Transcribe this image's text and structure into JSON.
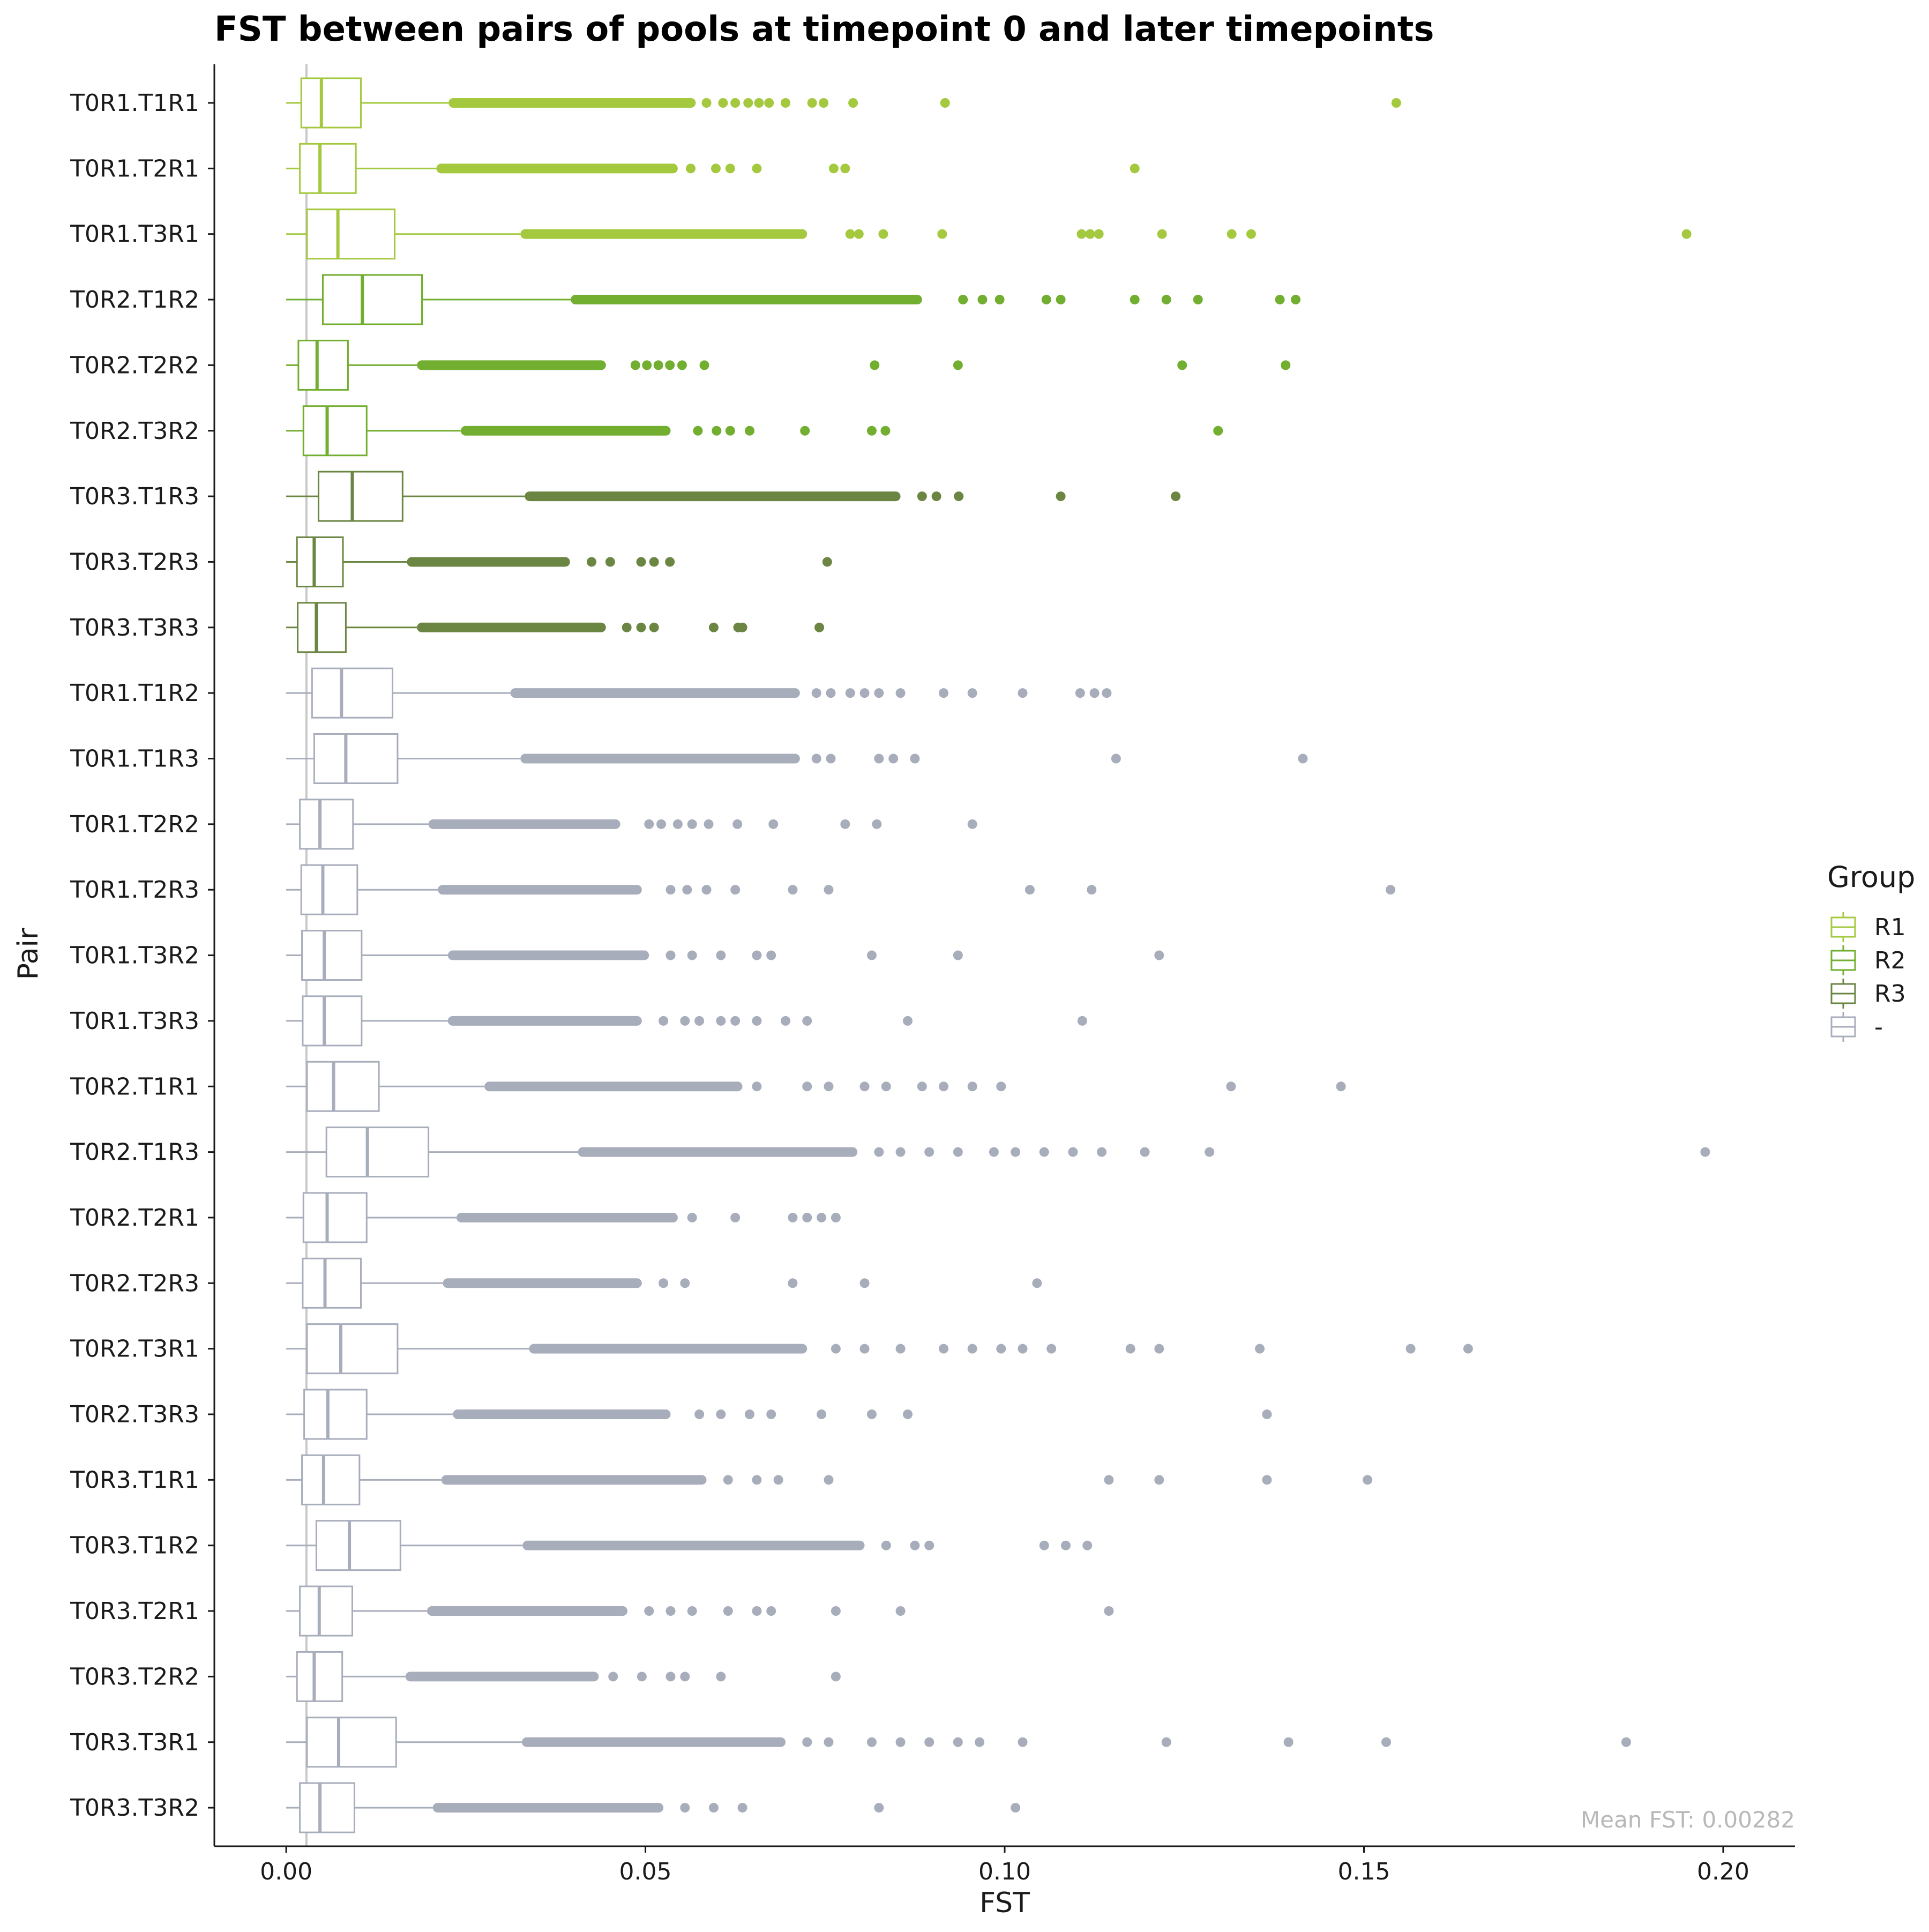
{
  "chart_data": {
    "type": "boxplot",
    "title": "FST between pairs of pools at timepoint 0 and later timepoints",
    "xlabel": "FST",
    "ylabel": "Pair",
    "xlim": [
      -0.01,
      0.21
    ],
    "xticks": [
      0.0,
      0.05,
      0.1,
      0.15,
      0.2
    ],
    "xtick_labels": [
      "0.00",
      "0.05",
      "0.10",
      "0.15",
      "0.20"
    ],
    "grid": false,
    "legend": {
      "title": "Group",
      "placement": "right",
      "entries": [
        {
          "name": "R1",
          "color": "#a4c93f"
        },
        {
          "name": "R2",
          "color": "#72ae2f"
        },
        {
          "name": "R3",
          "color": "#6b8543"
        },
        {
          "name": "-",
          "color": "#a8adbb"
        }
      ]
    },
    "reference_line": {
      "x": 0.00282,
      "color": "#c8c8c8"
    },
    "annotation": "Mean FST: 0.00282",
    "series": [
      {
        "pair": "T0R1.T1R1",
        "group": "R1",
        "q1": 0.0021,
        "median": 0.0049,
        "q3": 0.0104,
        "wlo": 0.0,
        "whi": 0.0226,
        "dense": [
          0.0226,
          0.057
        ],
        "outliers": [
          0.0585,
          0.0608,
          0.0625,
          0.0643,
          0.0658,
          0.0672,
          0.0695,
          0.0732,
          0.0748,
          0.0789,
          0.0917,
          0.1545
        ]
      },
      {
        "pair": "T0R1.T2R1",
        "group": "R1",
        "q1": 0.0019,
        "median": 0.0047,
        "q3": 0.0097,
        "wlo": 0.0,
        "whi": 0.0209,
        "dense": [
          0.0209,
          0.0545
        ],
        "outliers": [
          0.0563,
          0.0598,
          0.0618,
          0.0655,
          0.0762,
          0.0778,
          0.1181
        ]
      },
      {
        "pair": "T0R1.T3R1",
        "group": "R1",
        "q1": 0.0029,
        "median": 0.0072,
        "q3": 0.0151,
        "wlo": 0.0,
        "whi": 0.0326,
        "dense": [
          0.0326,
          0.0725
        ],
        "outliers": [
          0.0785,
          0.0797,
          0.0831,
          0.0913,
          0.1107,
          0.1119,
          0.1131,
          0.1219,
          0.1316,
          0.1343,
          0.1949
        ]
      },
      {
        "pair": "T0R2.T1R2",
        "group": "R2",
        "q1": 0.0051,
        "median": 0.0106,
        "q3": 0.0189,
        "wlo": 0.0,
        "whi": 0.0396,
        "dense": [
          0.0396,
          0.0885
        ],
        "outliers": [
          0.0942,
          0.0969,
          0.0993,
          0.1058,
          0.1078,
          0.1181,
          0.1225,
          0.1269,
          0.1383,
          0.1405
        ]
      },
      {
        "pair": "T0R2.T2R2",
        "group": "R2",
        "q1": 0.0017,
        "median": 0.0043,
        "q3": 0.0086,
        "wlo": 0.0,
        "whi": 0.0182,
        "dense": [
          0.0182,
          0.0445
        ],
        "outliers": [
          0.0486,
          0.0502,
          0.0518,
          0.0534,
          0.0551,
          0.0582,
          0.0819,
          0.0935,
          0.1247,
          0.1391
        ]
      },
      {
        "pair": "T0R2.T3R2",
        "group": "R2",
        "q1": 0.0024,
        "median": 0.0057,
        "q3": 0.0112,
        "wlo": 0.0,
        "whi": 0.0243,
        "dense": [
          0.0243,
          0.0535
        ],
        "outliers": [
          0.0573,
          0.0599,
          0.0618,
          0.0645,
          0.0722,
          0.0815,
          0.0834,
          0.1297
        ]
      },
      {
        "pair": "T0R3.T1R3",
        "group": "R3",
        "q1": 0.0045,
        "median": 0.0092,
        "q3": 0.0162,
        "wlo": 0.0,
        "whi": 0.0332,
        "dense": [
          0.0332,
          0.0855
        ],
        "outliers": [
          0.0885,
          0.0905,
          0.0936,
          0.1078,
          0.1238
        ]
      },
      {
        "pair": "T0R3.T2R3",
        "group": "R3",
        "q1": 0.0015,
        "median": 0.0039,
        "q3": 0.0079,
        "wlo": 0.0,
        "whi": 0.0168,
        "dense": [
          0.0168,
          0.0395
        ],
        "outliers": [
          0.0425,
          0.0451,
          0.0494,
          0.0512,
          0.0534,
          0.0753
        ]
      },
      {
        "pair": "T0R3.T3R3",
        "group": "R3",
        "q1": 0.0016,
        "median": 0.0042,
        "q3": 0.0083,
        "wlo": 0.0,
        "whi": 0.0182,
        "dense": [
          0.0182,
          0.0445
        ],
        "outliers": [
          0.0474,
          0.0494,
          0.0512,
          0.0595,
          0.0629,
          0.0635,
          0.0742
        ]
      },
      {
        "pair": "T0R1.T1R2",
        "group": "-",
        "q1": 0.0036,
        "median": 0.0077,
        "q3": 0.0148,
        "wlo": 0.0,
        "whi": 0.0312,
        "dense": [
          0.0312,
          0.0715
        ],
        "outliers": [
          0.0738,
          0.0758,
          0.0785,
          0.0805,
          0.0825,
          0.0855,
          0.0915,
          0.0955,
          0.1025,
          0.1105,
          0.1125,
          0.1142
        ]
      },
      {
        "pair": "T0R1.T1R3",
        "group": "-",
        "q1": 0.0039,
        "median": 0.0083,
        "q3": 0.0155,
        "wlo": 0.0,
        "whi": 0.0326,
        "dense": [
          0.0326,
          0.0715
        ],
        "outliers": [
          0.0738,
          0.0758,
          0.0825,
          0.0845,
          0.0875,
          0.1155,
          0.1415
        ]
      },
      {
        "pair": "T0R1.T2R2",
        "group": "-",
        "q1": 0.0019,
        "median": 0.0047,
        "q3": 0.0093,
        "wlo": 0.0,
        "whi": 0.0198,
        "dense": [
          0.0198,
          0.0465
        ],
        "outliers": [
          0.0505,
          0.0522,
          0.0545,
          0.0565,
          0.0588,
          0.0628,
          0.0678,
          0.0778,
          0.0822,
          0.0955
        ]
      },
      {
        "pair": "T0R1.T2R3",
        "group": "-",
        "q1": 0.0021,
        "median": 0.0051,
        "q3": 0.0099,
        "wlo": 0.0,
        "whi": 0.0211,
        "dense": [
          0.0211,
          0.0495
        ],
        "outliers": [
          0.0535,
          0.0558,
          0.0585,
          0.0625,
          0.0705,
          0.0755,
          0.1035,
          0.1121,
          0.1537
        ]
      },
      {
        "pair": "T0R1.T3R2",
        "group": "-",
        "q1": 0.0022,
        "median": 0.0053,
        "q3": 0.0105,
        "wlo": 0.0,
        "whi": 0.0225,
        "dense": [
          0.0225,
          0.0505
        ],
        "outliers": [
          0.0535,
          0.0565,
          0.0605,
          0.0655,
          0.0675,
          0.0815,
          0.0935,
          0.1215
        ]
      },
      {
        "pair": "T0R1.T3R3",
        "group": "-",
        "q1": 0.0023,
        "median": 0.0053,
        "q3": 0.0105,
        "wlo": 0.0,
        "whi": 0.0225,
        "dense": [
          0.0225,
          0.0495
        ],
        "outliers": [
          0.0525,
          0.0555,
          0.0575,
          0.0605,
          0.0625,
          0.0655,
          0.0695,
          0.0725,
          0.0865,
          0.1108
        ]
      },
      {
        "pair": "T0R2.T1R1",
        "group": "-",
        "q1": 0.0029,
        "median": 0.0066,
        "q3": 0.0129,
        "wlo": 0.0,
        "whi": 0.0276,
        "dense": [
          0.0276,
          0.0635
        ],
        "outliers": [
          0.0655,
          0.0725,
          0.0755,
          0.0805,
          0.0835,
          0.0885,
          0.0915,
          0.0955,
          0.0995,
          0.1315,
          0.1468
        ]
      },
      {
        "pair": "T0R2.T1R3",
        "group": "-",
        "q1": 0.0056,
        "median": 0.0113,
        "q3": 0.0198,
        "wlo": 0.0,
        "whi": 0.0406,
        "dense": [
          0.0406,
          0.0795
        ],
        "outliers": [
          0.0825,
          0.0855,
          0.0895,
          0.0935,
          0.0985,
          0.1015,
          0.1055,
          0.1095,
          0.1135,
          0.1195,
          0.1285,
          0.1975
        ]
      },
      {
        "pair": "T0R2.T2R1",
        "group": "-",
        "q1": 0.0024,
        "median": 0.0057,
        "q3": 0.0112,
        "wlo": 0.0,
        "whi": 0.0237,
        "dense": [
          0.0237,
          0.0545
        ],
        "outliers": [
          0.0565,
          0.0625,
          0.0705,
          0.0725,
          0.0745,
          0.0765
        ]
      },
      {
        "pair": "T0R2.T2R3",
        "group": "-",
        "q1": 0.0023,
        "median": 0.0054,
        "q3": 0.0104,
        "wlo": 0.0,
        "whi": 0.0218,
        "dense": [
          0.0218,
          0.0495
        ],
        "outliers": [
          0.0525,
          0.0555,
          0.0705,
          0.0805,
          0.1045
        ]
      },
      {
        "pair": "T0R2.T3R1",
        "group": "-",
        "q1": 0.0029,
        "median": 0.0076,
        "q3": 0.0155,
        "wlo": 0.0,
        "whi": 0.0338,
        "dense": [
          0.0338,
          0.0725
        ],
        "outliers": [
          0.0765,
          0.0805,
          0.0855,
          0.0915,
          0.0955,
          0.0995,
          0.1025,
          0.1065,
          0.1175,
          0.1215,
          0.1355,
          0.1565,
          0.1645
        ]
      },
      {
        "pair": "T0R2.T3R3",
        "group": "-",
        "q1": 0.0025,
        "median": 0.0058,
        "q3": 0.0112,
        "wlo": 0.0,
        "whi": 0.0232,
        "dense": [
          0.0232,
          0.0535
        ],
        "outliers": [
          0.0575,
          0.0605,
          0.0645,
          0.0675,
          0.0745,
          0.0815,
          0.0865,
          0.1365
        ]
      },
      {
        "pair": "T0R3.T1R1",
        "group": "-",
        "q1": 0.0022,
        "median": 0.0052,
        "q3": 0.0102,
        "wlo": 0.0,
        "whi": 0.0216,
        "dense": [
          0.0216,
          0.0585
        ],
        "outliers": [
          0.0615,
          0.0655,
          0.0685,
          0.0755,
          0.1145,
          0.1215,
          0.1365,
          0.1505
        ]
      },
      {
        "pair": "T0R3.T1R2",
        "group": "-",
        "q1": 0.0042,
        "median": 0.0088,
        "q3": 0.0159,
        "wlo": 0.0,
        "whi": 0.0329,
        "dense": [
          0.0329,
          0.0805
        ],
        "outliers": [
          0.0835,
          0.0875,
          0.0895,
          0.1055,
          0.1085,
          0.1115
        ]
      },
      {
        "pair": "T0R3.T2R1",
        "group": "-",
        "q1": 0.0019,
        "median": 0.0046,
        "q3": 0.0092,
        "wlo": 0.0,
        "whi": 0.0196,
        "dense": [
          0.0196,
          0.0475
        ],
        "outliers": [
          0.0505,
          0.0535,
          0.0565,
          0.0615,
          0.0655,
          0.0675,
          0.0765,
          0.0855,
          0.1145
        ]
      },
      {
        "pair": "T0R3.T2R2",
        "group": "-",
        "q1": 0.0015,
        "median": 0.0039,
        "q3": 0.0078,
        "wlo": 0.0,
        "whi": 0.0166,
        "dense": [
          0.0166,
          0.0435
        ],
        "outliers": [
          0.0455,
          0.0495,
          0.0535,
          0.0555,
          0.0605,
          0.0765
        ]
      },
      {
        "pair": "T0R3.T3R1",
        "group": "-",
        "q1": 0.0029,
        "median": 0.0073,
        "q3": 0.0153,
        "wlo": 0.0,
        "whi": 0.0328,
        "dense": [
          0.0328,
          0.0695
        ],
        "outliers": [
          0.0725,
          0.0755,
          0.0815,
          0.0855,
          0.0895,
          0.0935,
          0.0965,
          0.1025,
          0.1225,
          0.1395,
          0.1531,
          0.1865
        ]
      },
      {
        "pair": "T0R3.T3R2",
        "group": "-",
        "q1": 0.0019,
        "median": 0.0047,
        "q3": 0.0095,
        "wlo": 0.0,
        "whi": 0.0204,
        "dense": [
          0.0204,
          0.0525
        ],
        "outliers": [
          0.0555,
          0.0595,
          0.0635,
          0.0825,
          0.1015
        ]
      }
    ]
  }
}
